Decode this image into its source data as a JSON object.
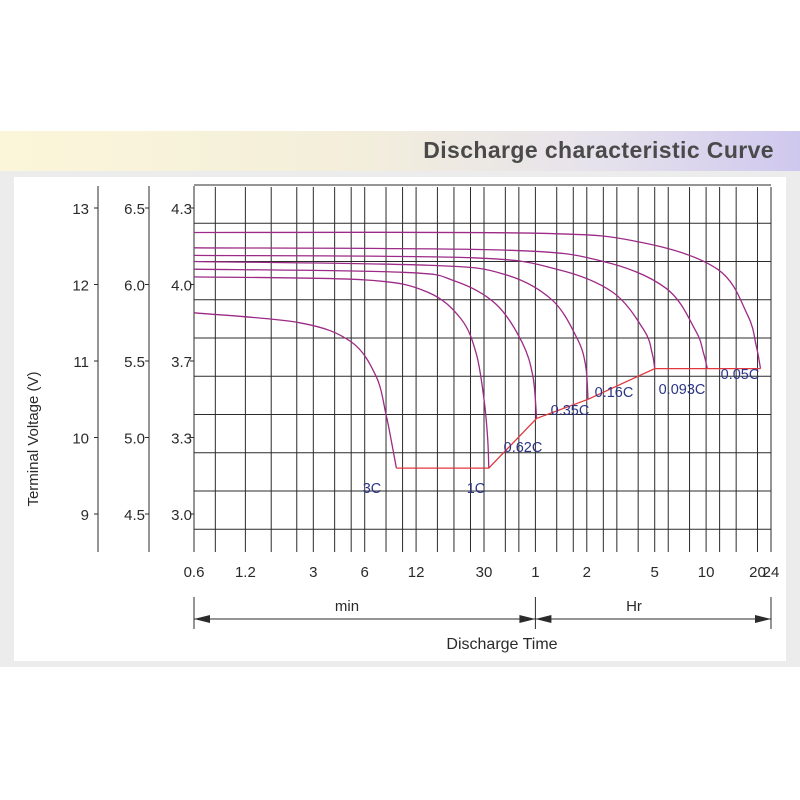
{
  "header": {
    "title": "Discharge characteristic Curve"
  },
  "chart_data": {
    "type": "line",
    "title": "Discharge characteristic Curve",
    "xlabel": "Discharge Time",
    "ylabel": "Terminal Voltage  (V)",
    "x_scale": "log",
    "x_unit_min": "min",
    "x_unit_hr": "Hr",
    "x_ticks": [
      {
        "label": "0.6",
        "minutes": 0.6
      },
      {
        "label": "1.2",
        "minutes": 1.2
      },
      {
        "label": "3",
        "minutes": 3
      },
      {
        "label": "6",
        "minutes": 6
      },
      {
        "label": "12",
        "minutes": 12
      },
      {
        "label": "30",
        "minutes": 30
      },
      {
        "label": "1",
        "minutes": 60
      },
      {
        "label": "2",
        "minutes": 120
      },
      {
        "label": "5",
        "minutes": 300
      },
      {
        "label": "10",
        "minutes": 600
      },
      {
        "label": "20",
        "minutes": 1200
      },
      {
        "label": "24",
        "minutes": 1440
      }
    ],
    "y_axes": [
      {
        "ticks": [
          "13",
          "12",
          "11",
          "10",
          "9"
        ],
        "values": [
          13,
          12,
          11,
          10,
          9
        ]
      },
      {
        "ticks": [
          "6.5",
          "6.0",
          "5.5",
          "5.0",
          "4.5"
        ],
        "values": [
          6.5,
          6.0,
          5.5,
          5.0,
          4.5
        ]
      },
      {
        "ticks": [
          "4.3",
          "4.0",
          "3.7",
          "3.3",
          "3.0"
        ],
        "values": [
          4.3,
          4.0,
          3.7,
          3.3,
          3.0
        ]
      }
    ],
    "grid": true,
    "series": [
      {
        "name": "3C",
        "points": [
          [
            0.6,
            11.63
          ],
          [
            2.5,
            11.5
          ],
          [
            5.0,
            11.25
          ],
          [
            7.0,
            10.8
          ],
          [
            8.0,
            10.3
          ],
          [
            8.6,
            9.95
          ],
          [
            9.2,
            9.6
          ]
        ]
      },
      {
        "name": "1C",
        "points": [
          [
            0.6,
            12.1
          ],
          [
            6.0,
            12.06
          ],
          [
            14.0,
            11.9
          ],
          [
            22.0,
            11.55
          ],
          [
            27.0,
            11.1
          ],
          [
            30.0,
            10.5
          ],
          [
            31.5,
            10.0
          ],
          [
            32.0,
            9.6
          ]
        ]
      },
      {
        "name": "0.62C",
        "points": [
          [
            0.6,
            12.2
          ],
          [
            10.0,
            12.16
          ],
          [
            20.0,
            12.05
          ],
          [
            35.0,
            11.75
          ],
          [
            50.0,
            11.25
          ],
          [
            58.0,
            10.8
          ],
          [
            61.0,
            10.25
          ]
        ]
      },
      {
        "name": "0.35C",
        "points": [
          [
            0.6,
            12.3
          ],
          [
            15.0,
            12.25
          ],
          [
            40.0,
            12.13
          ],
          [
            75.0,
            11.8
          ],
          [
            105.0,
            11.3
          ],
          [
            118.0,
            10.95
          ],
          [
            122.0,
            10.5
          ]
        ]
      },
      {
        "name": "0.16C",
        "points": [
          [
            0.6,
            12.38
          ],
          [
            25.0,
            12.35
          ],
          [
            80.0,
            12.2
          ],
          [
            170.0,
            11.9
          ],
          [
            260.0,
            11.4
          ],
          [
            290.0,
            11.1
          ],
          [
            300.0,
            10.9
          ]
        ]
      },
      {
        "name": "0.093C",
        "points": [
          [
            0.6,
            12.48
          ],
          [
            40.0,
            12.45
          ],
          [
            150.0,
            12.3
          ],
          [
            350.0,
            11.95
          ],
          [
            520.0,
            11.4
          ],
          [
            580.0,
            11.1
          ],
          [
            610.0,
            10.9
          ]
        ]
      },
      {
        "name": "0.05C",
        "points": [
          [
            0.6,
            12.68
          ],
          [
            60.0,
            12.67
          ],
          [
            250.0,
            12.55
          ],
          [
            700.0,
            12.2
          ],
          [
            1050.0,
            11.6
          ],
          [
            1180.0,
            11.2
          ],
          [
            1250.0,
            10.9
          ]
        ]
      }
    ],
    "cutoff_line": {
      "points": [
        [
          9.2,
          9.6
        ],
        [
          32.0,
          9.6
        ],
        [
          61.0,
          10.25
        ],
        [
          122.0,
          10.5
        ],
        [
          300.0,
          10.9
        ],
        [
          1250.0,
          10.9
        ]
      ]
    }
  },
  "colors": {
    "curve": "#9c2a86",
    "cutoff": "#e0383e",
    "grid": "#2b2b2b",
    "curve_label": "#2d3585",
    "axis_text": "#2a2a2a"
  }
}
